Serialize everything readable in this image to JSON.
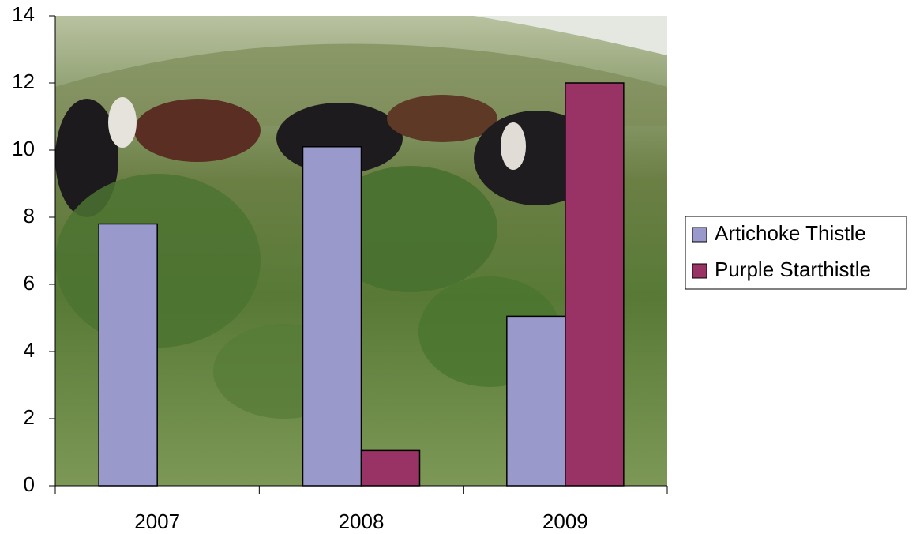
{
  "chart_data": {
    "type": "bar",
    "categories": [
      "2007",
      "2008",
      "2009"
    ],
    "series": [
      {
        "name": "Artichoke Thistle",
        "color": "#9999cc",
        "values": [
          7.8,
          10.1,
          5.05
        ]
      },
      {
        "name": "Purple Starthistle",
        "color": "#993366",
        "values": [
          0,
          1.05,
          12
        ]
      }
    ],
    "ylim": [
      0,
      14
    ],
    "yticks": [
      0,
      2,
      4,
      6,
      8,
      10,
      12,
      14
    ],
    "legend": "right"
  }
}
